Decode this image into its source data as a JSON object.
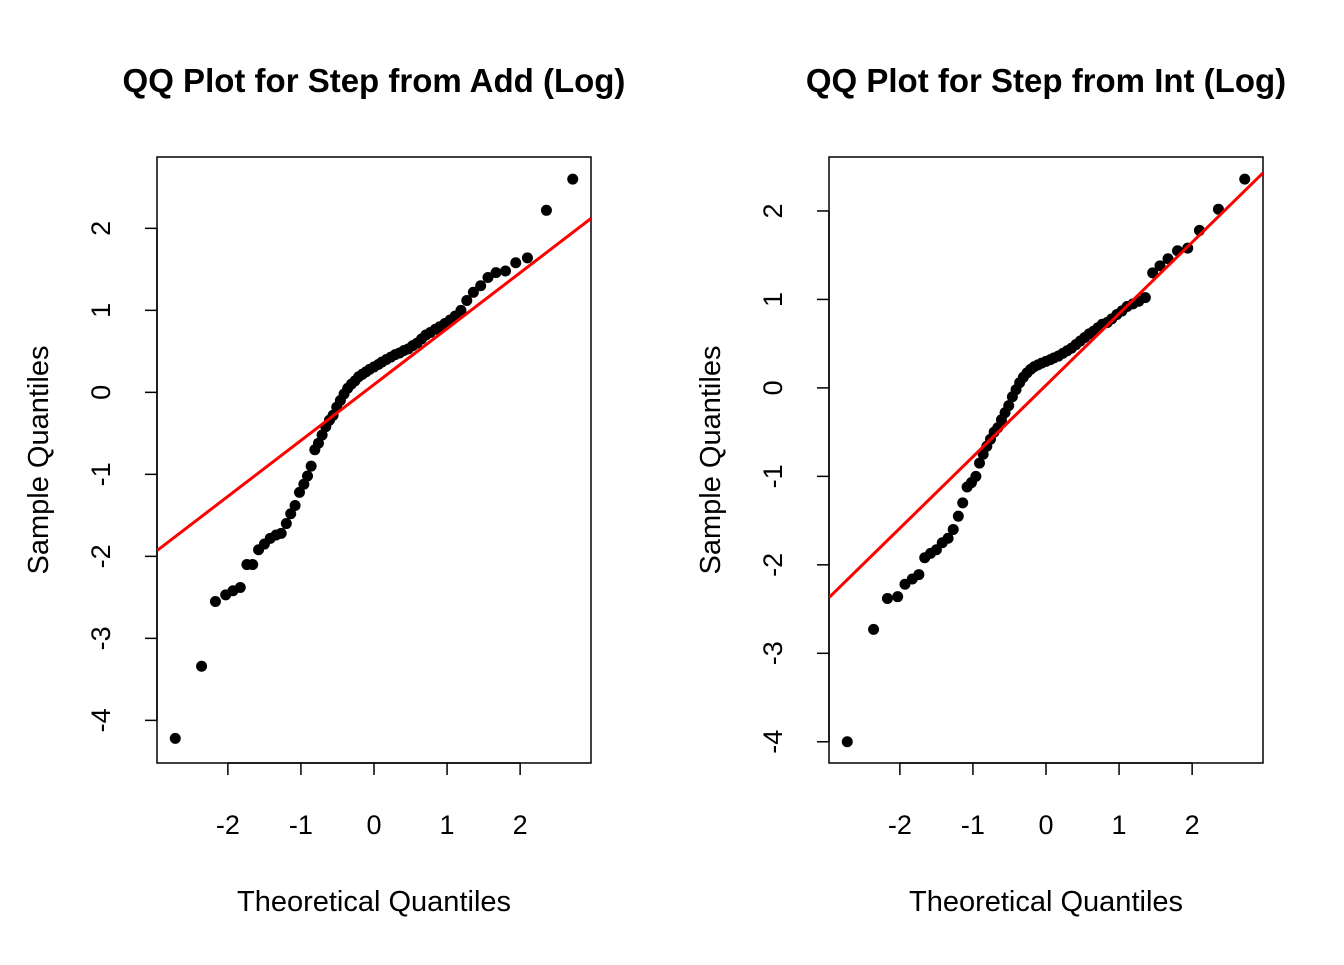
{
  "chart_data": [
    {
      "type": "scatter",
      "title": "QQ Plot for Step from Add (Log)",
      "x_label": "Theoretical Quantiles",
      "y_label": "Sample Quantiles",
      "color": "#000000",
      "x": [
        -2.72,
        -2.36,
        -2.17,
        -2.03,
        -1.93,
        -1.83,
        -1.74,
        -1.66,
        -1.58,
        -1.5,
        -1.42,
        -1.34,
        -1.27,
        -1.2,
        -1.14,
        -1.08,
        -1.02,
        -0.96,
        -0.91,
        -0.86,
        -0.81,
        -0.76,
        -0.71,
        -0.66,
        -0.61,
        -0.56,
        -0.51,
        -0.46,
        -0.41,
        -0.36,
        -0.31,
        -0.26,
        -0.21,
        -0.16,
        -0.11,
        -0.06,
        0,
        0.06,
        0.11,
        0.17,
        0.23,
        0.29,
        0.35,
        0.41,
        0.47,
        0.53,
        0.59,
        0.65,
        0.71,
        0.77,
        0.84,
        0.9,
        0.97,
        1.04,
        1.11,
        1.19,
        1.27,
        1.36,
        1.46,
        1.56,
        1.67,
        1.8,
        1.94,
        2.1,
        2.36,
        2.72
      ],
      "values": [
        -4.22,
        -3.34,
        -2.55,
        -2.47,
        -2.42,
        -2.38,
        -2.1,
        -2.1,
        -1.92,
        -1.85,
        -1.78,
        -1.74,
        -1.72,
        -1.6,
        -1.48,
        -1.38,
        -1.22,
        -1.12,
        -1.02,
        -0.9,
        -0.7,
        -0.62,
        -0.52,
        -0.42,
        -0.34,
        -0.28,
        -0.18,
        -0.1,
        -0.02,
        0.05,
        0.1,
        0.14,
        0.19,
        0.22,
        0.25,
        0.28,
        0.31,
        0.34,
        0.37,
        0.4,
        0.43,
        0.46,
        0.48,
        0.51,
        0.53,
        0.57,
        0.6,
        0.65,
        0.7,
        0.73,
        0.77,
        0.8,
        0.84,
        0.88,
        0.93,
        1.0,
        1.12,
        1.22,
        1.3,
        1.4,
        1.46,
        1.48,
        1.58,
        1.64,
        2.22,
        2.6
      ],
      "reference_line": {
        "color": "#ff0000",
        "x": [
          -2.97,
          2.97
        ],
        "y": [
          -1.93,
          2.12
        ]
      },
      "xlim": [
        -2.97,
        2.97
      ],
      "xticks": [
        -2,
        -1,
        0,
        1,
        2
      ],
      "ylim": [
        -4.52,
        2.87
      ],
      "yticks": [
        -4,
        -3,
        -2,
        -1,
        0,
        1,
        2
      ]
    },
    {
      "type": "scatter",
      "title": "QQ Plot for Step from Int (Log)",
      "x_label": "Theoretical Quantiles",
      "y_label": "Sample Quantiles",
      "color": "#000000",
      "x": [
        -2.72,
        -2.36,
        -2.17,
        -2.03,
        -1.93,
        -1.83,
        -1.74,
        -1.66,
        -1.58,
        -1.5,
        -1.42,
        -1.34,
        -1.27,
        -1.2,
        -1.14,
        -1.08,
        -1.02,
        -0.96,
        -0.91,
        -0.86,
        -0.81,
        -0.76,
        -0.71,
        -0.66,
        -0.61,
        -0.56,
        -0.51,
        -0.46,
        -0.41,
        -0.36,
        -0.31,
        -0.26,
        -0.21,
        -0.16,
        -0.11,
        -0.06,
        0,
        0.06,
        0.11,
        0.17,
        0.23,
        0.29,
        0.35,
        0.41,
        0.47,
        0.53,
        0.59,
        0.65,
        0.71,
        0.77,
        0.84,
        0.9,
        0.97,
        1.04,
        1.11,
        1.19,
        1.27,
        1.36,
        1.46,
        1.56,
        1.67,
        1.8,
        1.94,
        2.1,
        2.36,
        2.72
      ],
      "values": [
        -4.0,
        -2.73,
        -2.38,
        -2.36,
        -2.22,
        -2.16,
        -2.11,
        -1.92,
        -1.87,
        -1.83,
        -1.75,
        -1.7,
        -1.6,
        -1.45,
        -1.3,
        -1.12,
        -1.07,
        -1.0,
        -0.85,
        -0.75,
        -0.66,
        -0.58,
        -0.5,
        -0.45,
        -0.36,
        -0.28,
        -0.2,
        -0.1,
        -0.02,
        0.06,
        0.12,
        0.17,
        0.21,
        0.24,
        0.26,
        0.28,
        0.3,
        0.32,
        0.34,
        0.36,
        0.39,
        0.42,
        0.45,
        0.49,
        0.53,
        0.57,
        0.61,
        0.64,
        0.68,
        0.72,
        0.74,
        0.78,
        0.83,
        0.87,
        0.92,
        0.95,
        0.98,
        1.02,
        1.3,
        1.38,
        1.46,
        1.55,
        1.58,
        1.78,
        2.02,
        2.36
      ],
      "reference_line": {
        "color": "#ff0000",
        "x": [
          -2.97,
          2.97
        ],
        "y": [
          -2.37,
          2.43
        ]
      },
      "xlim": [
        -2.97,
        2.97
      ],
      "xticks": [
        -2,
        -1,
        0,
        1,
        2
      ],
      "ylim": [
        -4.24,
        2.61
      ],
      "yticks": [
        -4,
        -3,
        -2,
        -1,
        0,
        1,
        2
      ]
    }
  ]
}
